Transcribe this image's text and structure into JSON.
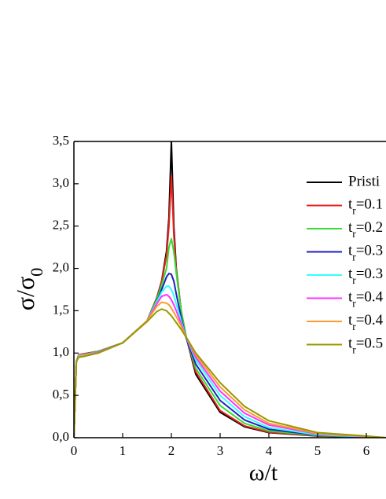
{
  "chart_data": {
    "type": "line",
    "xlabel": "ω/t",
    "ylabel": "σ/σ0",
    "x": [
      0,
      0.05,
      0.1,
      0.2,
      0.5,
      1.0,
      1.5,
      1.7,
      1.8,
      1.9,
      1.95,
      2.0,
      2.05,
      2.1,
      2.2,
      2.3,
      2.5,
      3.0,
      3.5,
      4.0,
      5.0,
      6.0,
      6.4
    ],
    "xlim": [
      0,
      6.4
    ],
    "xticks": [
      0,
      1,
      2,
      3,
      4,
      5,
      6
    ],
    "ylim": [
      0,
      3.5
    ],
    "yticks": [
      {
        "value": 0,
        "label": "0,0"
      },
      {
        "value": 0.5,
        "label": "0,5"
      },
      {
        "value": 1,
        "label": "1,0"
      },
      {
        "value": 1.5,
        "label": "1,5"
      },
      {
        "value": 2,
        "label": "2,0"
      },
      {
        "value": 2.5,
        "label": "2,5"
      },
      {
        "value": 3,
        "label": "3,0"
      },
      {
        "value": 3.5,
        "label": "3,5"
      }
    ],
    "series": [
      {
        "name": "Pristi",
        "color": "#000000",
        "values": [
          0,
          0.9,
          0.98,
          0.99,
          1.02,
          1.12,
          1.38,
          1.65,
          1.85,
          2.2,
          2.6,
          3.5,
          2.5,
          2.0,
          1.5,
          1.2,
          0.75,
          0.3,
          0.13,
          0.06,
          0.02,
          0.005,
          0
        ]
      },
      {
        "name": "tr=0.1",
        "color": "#e8231f",
        "values": [
          0,
          0.9,
          0.98,
          0.99,
          1.02,
          1.12,
          1.38,
          1.64,
          1.84,
          2.15,
          2.5,
          3.1,
          2.4,
          1.98,
          1.5,
          1.2,
          0.78,
          0.32,
          0.14,
          0.065,
          0.022,
          0.006,
          0
        ]
      },
      {
        "name": "tr=0.2",
        "color": "#33dd33",
        "values": [
          0,
          0.9,
          0.97,
          0.98,
          1.02,
          1.12,
          1.38,
          1.63,
          1.8,
          2.0,
          2.25,
          2.35,
          2.2,
          1.95,
          1.5,
          1.2,
          0.82,
          0.38,
          0.17,
          0.08,
          0.025,
          0.008,
          0
        ]
      },
      {
        "name": "tr=0.3",
        "color": "#1f1fbf",
        "values": [
          0,
          0.9,
          0.97,
          0.98,
          1.01,
          1.12,
          1.38,
          1.6,
          1.75,
          1.9,
          1.94,
          1.93,
          1.85,
          1.7,
          1.42,
          1.18,
          0.87,
          0.44,
          0.21,
          0.1,
          0.03,
          0.01,
          0
        ]
      },
      {
        "name": "tr=0.3",
        "color": "#33ffff",
        "values": [
          0,
          0.9,
          0.97,
          0.98,
          1.01,
          1.12,
          1.38,
          1.6,
          1.72,
          1.79,
          1.79,
          1.75,
          1.68,
          1.58,
          1.38,
          1.19,
          0.92,
          0.5,
          0.25,
          0.12,
          0.035,
          0.012,
          0
        ]
      },
      {
        "name": "tr=0.4",
        "color": "#ff33ff",
        "values": [
          0,
          0.9,
          0.96,
          0.97,
          1.01,
          1.12,
          1.38,
          1.58,
          1.67,
          1.69,
          1.67,
          1.63,
          1.57,
          1.5,
          1.35,
          1.19,
          0.95,
          0.55,
          0.29,
          0.15,
          0.045,
          0.015,
          0
        ]
      },
      {
        "name": "tr=0.4",
        "color": "#ff9933",
        "values": [
          0,
          0.9,
          0.96,
          0.97,
          1.0,
          1.12,
          1.38,
          1.55,
          1.6,
          1.59,
          1.57,
          1.53,
          1.48,
          1.43,
          1.32,
          1.19,
          0.98,
          0.6,
          0.33,
          0.17,
          0.05,
          0.017,
          0
        ]
      },
      {
        "name": "tr=0.5",
        "color": "#999900",
        "values": [
          0,
          0.9,
          0.95,
          0.96,
          1.0,
          1.12,
          1.37,
          1.49,
          1.52,
          1.5,
          1.47,
          1.44,
          1.4,
          1.36,
          1.28,
          1.19,
          1.0,
          0.65,
          0.37,
          0.2,
          0.06,
          0.02,
          0
        ]
      }
    ]
  }
}
